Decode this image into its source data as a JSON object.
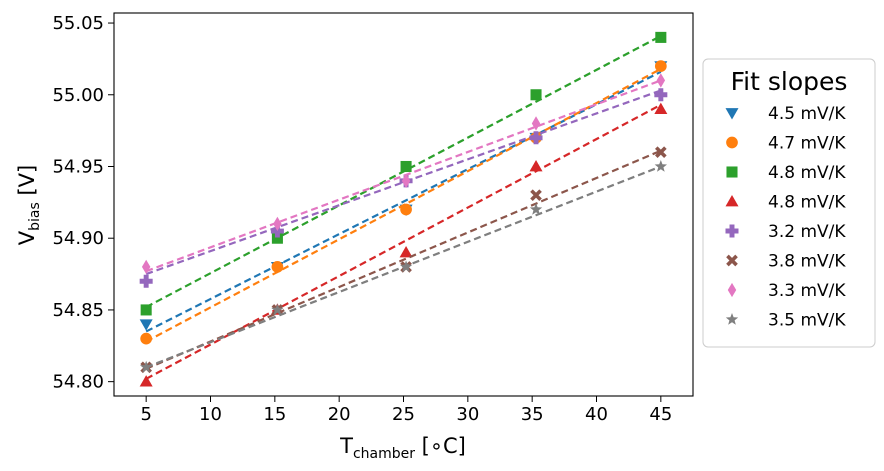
{
  "chart_data": {
    "type": "scatter",
    "title": "",
    "xlabel": {
      "main": "T",
      "sub": "chamber",
      "suffix": " [∘C]"
    },
    "ylabel": {
      "main": "V",
      "sub": "bias",
      "suffix": " [V]"
    },
    "xlim": [
      2.5,
      47.5
    ],
    "ylim": [
      54.79,
      55.057
    ],
    "xticks": [
      5,
      10,
      15,
      20,
      25,
      30,
      35,
      40,
      45
    ],
    "xtick_labels": [
      "5",
      "10",
      "15",
      "20",
      "25",
      "30",
      "35",
      "40",
      "45"
    ],
    "yticks": [
      54.8,
      54.85,
      54.9,
      54.95,
      55.0,
      55.05
    ],
    "ytick_labels": [
      "54.80",
      "54.85",
      "54.90",
      "54.95",
      "55.00",
      "55.05"
    ],
    "grid": false,
    "legend": {
      "title": "Fit slopes",
      "placement": "outside-right"
    },
    "series": [
      {
        "name": "4.5 mV/K",
        "color": "#1f77b4",
        "marker": "triangle-down",
        "x": [
          5,
          15.2,
          25.2,
          35.3,
          45
        ],
        "y": [
          54.84,
          54.88,
          54.92,
          54.97,
          55.02
        ],
        "fit": {
          "x": [
            5,
            45
          ],
          "y": [
            54.835,
            55.016
          ]
        }
      },
      {
        "name": "4.7 mV/K",
        "color": "#ff7f0e",
        "marker": "circle",
        "x": [
          5,
          15.2,
          25.2,
          35.3,
          45
        ],
        "y": [
          54.83,
          54.88,
          54.92,
          54.97,
          55.02
        ],
        "fit": {
          "x": [
            5,
            45
          ],
          "y": [
            54.828,
            55.018
          ]
        }
      },
      {
        "name": "4.8 mV/K",
        "color": "#2ca02c",
        "marker": "square",
        "x": [
          5,
          15.2,
          25.2,
          35.3,
          45
        ],
        "y": [
          54.85,
          54.9,
          54.95,
          55.0,
          55.04
        ],
        "fit": {
          "x": [
            5,
            45
          ],
          "y": [
            54.852,
            55.041
          ]
        }
      },
      {
        "name": "4.8 mV/K",
        "color": "#d62728",
        "marker": "triangle-up",
        "x": [
          5,
          15.2,
          25.2,
          35.3,
          45
        ],
        "y": [
          54.8,
          54.85,
          54.89,
          54.95,
          54.99
        ],
        "fit": {
          "x": [
            5,
            45
          ],
          "y": [
            54.802,
            54.993
          ]
        }
      },
      {
        "name": "3.2 mV/K",
        "color": "#9467bd",
        "marker": "plus",
        "x": [
          5,
          15.2,
          25.2,
          35.3,
          45
        ],
        "y": [
          54.87,
          54.905,
          54.94,
          54.97,
          55.0
        ],
        "fit": {
          "x": [
            5,
            45
          ],
          "y": [
            54.875,
            55.003
          ]
        }
      },
      {
        "name": "3.8 mV/K",
        "color": "#8c564b",
        "marker": "x",
        "x": [
          5,
          15.2,
          25.2,
          35.3,
          45
        ],
        "y": [
          54.81,
          54.85,
          54.88,
          54.93,
          54.96
        ],
        "fit": {
          "x": [
            5,
            45
          ],
          "y": [
            54.809,
            54.961
          ]
        }
      },
      {
        "name": "3.3 mV/K",
        "color": "#e377c2",
        "marker": "diamond",
        "x": [
          5,
          15.2,
          25.2,
          35.3,
          45
        ],
        "y": [
          54.88,
          54.91,
          54.94,
          54.98,
          55.01
        ],
        "fit": {
          "x": [
            5,
            45
          ],
          "y": [
            54.877,
            55.01
          ]
        }
      },
      {
        "name": "3.5 mV/K",
        "color": "#7f7f7f",
        "marker": "star",
        "x": [
          5,
          15.2,
          25.2,
          35.3,
          45
        ],
        "y": [
          54.81,
          54.85,
          54.88,
          54.92,
          54.95
        ],
        "fit": {
          "x": [
            5,
            45
          ],
          "y": [
            54.81,
            54.95
          ]
        }
      }
    ]
  }
}
